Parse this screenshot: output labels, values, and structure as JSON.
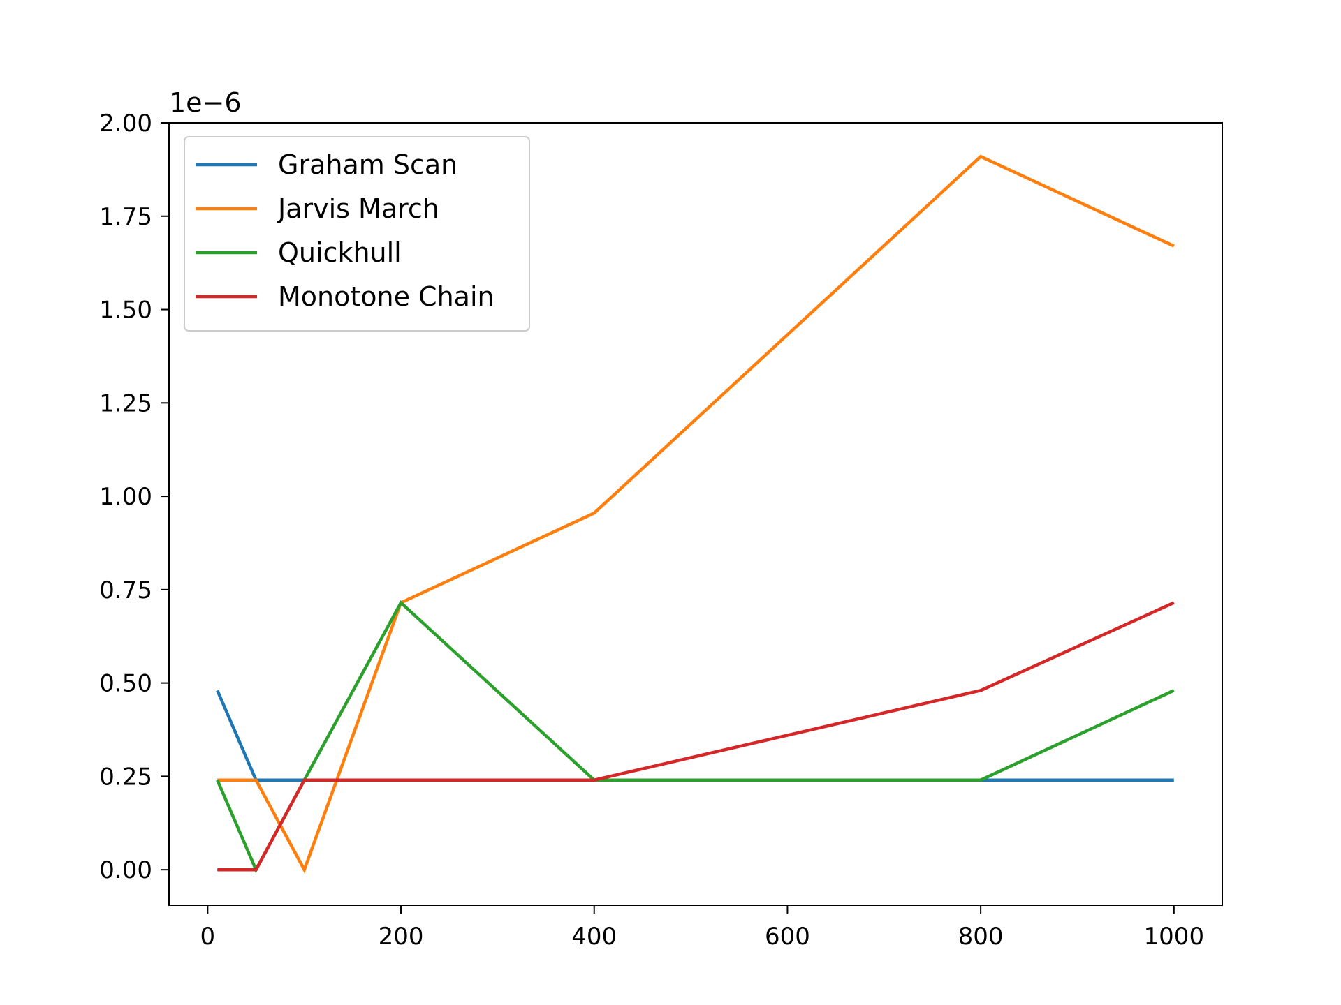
{
  "chart_data": {
    "type": "line",
    "title": "",
    "xlabel": "",
    "ylabel": "",
    "y_offset_label": "1e−6",
    "x": [
      10,
      50,
      100,
      200,
      400,
      800,
      1000
    ],
    "xlim": [
      -40,
      1050
    ],
    "ylim": [
      -0.095,
      2.0
    ],
    "xticks": [
      0,
      200,
      400,
      600,
      800,
      1000
    ],
    "yticks": [
      0.0,
      0.25,
      0.5,
      0.75,
      1.0,
      1.25,
      1.5,
      1.75,
      2.0
    ],
    "xtick_labels": [
      "0",
      "200",
      "400",
      "600",
      "800",
      "1000"
    ],
    "ytick_labels": [
      "0.00",
      "0.25",
      "0.50",
      "0.75",
      "1.00",
      "1.25",
      "1.50",
      "1.75",
      "2.00"
    ],
    "grid": false,
    "legend_position": "top-left",
    "series": [
      {
        "name": "Graham Scan",
        "color": "#1f77b4",
        "values": [
          0.48,
          0.24,
          0.24,
          0.24,
          0.24,
          0.24,
          0.24
        ]
      },
      {
        "name": "Jarvis March",
        "color": "#ff7f0e",
        "values": [
          0.24,
          0.24,
          0.0,
          0.715,
          0.955,
          1.91,
          1.67
        ]
      },
      {
        "name": "Quickhull",
        "color": "#2ca02c",
        "values": [
          0.24,
          0.0,
          0.24,
          0.715,
          0.24,
          0.24,
          0.48
        ]
      },
      {
        "name": "Monotone Chain",
        "color": "#d62728",
        "values": [
          0.0,
          0.0,
          0.24,
          0.24,
          0.24,
          0.48,
          0.715
        ]
      }
    ]
  }
}
